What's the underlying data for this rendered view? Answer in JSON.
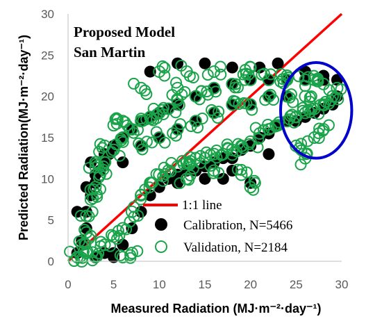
{
  "chart_data": {
    "type": "scatter",
    "title": "Proposed Model",
    "subtitle": "San Martin",
    "xlabel": "Measured Radiation (MJ·m⁻²·day⁻¹)",
    "ylabel": "Predicted Radiation(MJ·m⁻²·day⁻¹)",
    "xlim": [
      0,
      30
    ],
    "ylim": [
      0,
      30
    ],
    "xticks": [
      "0",
      "5",
      "10",
      "15",
      "20",
      "25",
      "30"
    ],
    "yticks": [
      "0",
      "5",
      "10",
      "15",
      "20",
      "25",
      "30"
    ],
    "grid": false,
    "legend_position": "bottom-right",
    "reference_line": {
      "name": "1:1 line",
      "color": "#ff0000",
      "x": [
        0,
        30
      ],
      "y": [
        0,
        30
      ]
    },
    "highlight_ellipse": {
      "color": "#0000cc",
      "center": [
        27.2,
        18.3
      ],
      "rx": 3.9,
      "ry": 5.8
    },
    "series": [
      {
        "name": "Calibration, N=5466",
        "marker": "filled-circle",
        "color": "#000000",
        "points": [
          [
            1,
            1
          ],
          [
            1.5,
            2.5
          ],
          [
            2,
            4
          ],
          [
            2,
            6
          ],
          [
            2.5,
            8
          ],
          [
            3,
            9.5
          ],
          [
            3.5,
            11
          ],
          [
            4,
            12
          ],
          [
            4.5,
            13
          ],
          [
            5,
            14
          ],
          [
            6,
            15
          ],
          [
            7,
            16
          ],
          [
            8,
            17
          ],
          [
            9,
            17.5
          ],
          [
            10,
            18
          ],
          [
            11,
            18.5
          ],
          [
            12,
            19
          ],
          [
            14,
            20
          ],
          [
            16,
            21
          ],
          [
            18,
            21.5
          ],
          [
            20,
            22
          ],
          [
            22,
            22
          ],
          [
            24,
            22
          ],
          [
            26,
            22
          ],
          [
            28,
            22
          ],
          [
            29.5,
            22
          ],
          [
            3,
            0.5
          ],
          [
            4,
            1
          ],
          [
            5,
            0.5
          ],
          [
            6,
            2
          ],
          [
            7,
            4
          ],
          [
            8,
            6
          ],
          [
            9,
            8
          ],
          [
            10,
            9
          ],
          [
            11,
            10
          ],
          [
            12,
            10.5
          ],
          [
            13,
            11
          ],
          [
            14,
            11
          ],
          [
            15,
            11.5
          ],
          [
            16,
            12
          ],
          [
            17,
            12.5
          ],
          [
            18,
            12.5
          ],
          [
            19,
            13.5
          ],
          [
            20,
            14
          ],
          [
            21,
            15
          ],
          [
            22,
            15.5
          ],
          [
            23,
            16.5
          ],
          [
            24,
            17
          ],
          [
            25,
            17
          ],
          [
            26,
            17.5
          ],
          [
            27,
            18
          ],
          [
            28,
            18.5
          ],
          [
            29,
            19
          ],
          [
            29.5,
            20
          ],
          [
            6,
            12
          ],
          [
            8,
            14
          ],
          [
            10,
            15
          ],
          [
            12,
            16
          ],
          [
            14,
            17
          ],
          [
            16,
            18
          ],
          [
            18,
            19
          ],
          [
            20,
            19
          ],
          [
            22,
            20
          ],
          [
            24,
            20
          ],
          [
            9,
            23
          ],
          [
            12,
            24
          ],
          [
            15,
            24
          ],
          [
            18,
            23.5
          ],
          [
            21,
            23.5
          ],
          [
            23,
            24
          ],
          [
            26,
            23
          ],
          [
            28,
            22.5
          ],
          [
            12,
            9.5
          ],
          [
            15,
            10
          ],
          [
            18,
            11
          ],
          [
            20,
            9.5
          ],
          [
            17,
            10
          ],
          [
            22,
            13
          ],
          [
            1,
            6
          ],
          [
            2,
            9
          ],
          [
            3,
            10.5
          ],
          [
            2.5,
            12
          ],
          [
            4,
            13
          ],
          [
            5,
            1
          ]
        ]
      },
      {
        "name": "Validation, N=2184",
        "marker": "open-circle",
        "color": "#1aa34a",
        "points": [
          [
            1,
            0.5
          ],
          [
            1.5,
            2
          ],
          [
            2,
            3.5
          ],
          [
            2,
            5.5
          ],
          [
            2.5,
            7.5
          ],
          [
            3,
            9
          ],
          [
            3.5,
            10.5
          ],
          [
            4,
            12
          ],
          [
            5,
            13.5
          ],
          [
            6,
            15
          ],
          [
            7,
            16
          ],
          [
            8,
            17
          ],
          [
            9,
            17.5
          ],
          [
            10,
            18
          ],
          [
            11,
            18.5
          ],
          [
            12,
            19.5
          ],
          [
            14,
            20
          ],
          [
            16,
            21
          ],
          [
            18,
            21.5
          ],
          [
            20,
            22
          ],
          [
            22,
            22
          ],
          [
            24,
            22
          ],
          [
            26,
            22
          ],
          [
            28,
            21.5
          ],
          [
            29.5,
            21
          ],
          [
            4,
            2
          ],
          [
            5,
            3
          ],
          [
            6,
            4
          ],
          [
            7,
            6
          ],
          [
            8,
            8
          ],
          [
            9,
            9.5
          ],
          [
            10,
            10.5
          ],
          [
            11,
            11
          ],
          [
            12,
            11.5
          ],
          [
            13,
            12
          ],
          [
            14,
            12.5
          ],
          [
            15,
            12.5
          ],
          [
            16,
            13
          ],
          [
            17,
            13
          ],
          [
            18,
            13.5
          ],
          [
            19,
            14
          ],
          [
            20,
            14.5
          ],
          [
            21,
            15.5
          ],
          [
            22,
            16
          ],
          [
            23,
            16.5
          ],
          [
            24,
            17
          ],
          [
            25,
            17.5
          ],
          [
            26,
            18
          ],
          [
            27,
            18.5
          ],
          [
            28,
            19
          ],
          [
            29,
            20
          ],
          [
            8,
            14
          ],
          [
            10,
            15
          ],
          [
            12,
            16
          ],
          [
            14,
            17
          ],
          [
            16,
            18
          ],
          [
            18,
            19
          ],
          [
            20,
            19
          ],
          [
            22,
            20
          ],
          [
            24,
            20
          ],
          [
            26,
            20
          ],
          [
            10,
            23
          ],
          [
            13,
            23
          ],
          [
            16,
            23
          ],
          [
            20,
            23.5
          ],
          [
            24,
            22.5
          ],
          [
            27,
            22
          ],
          [
            5,
            16.5
          ],
          [
            6,
            17
          ],
          [
            3,
            12
          ],
          [
            4,
            14
          ],
          [
            8,
            21
          ],
          [
            12,
            21
          ],
          [
            13,
            10
          ],
          [
            16,
            11
          ],
          [
            19,
            10.5
          ],
          [
            20,
            9
          ],
          [
            25,
            14
          ],
          [
            27,
            15
          ],
          [
            26,
            12.5
          ],
          [
            28,
            16
          ],
          [
            1.5,
            0
          ],
          [
            3,
            0.5
          ],
          [
            2,
            1
          ],
          [
            6,
            0.5
          ],
          [
            7,
            1
          ]
        ]
      }
    ]
  },
  "colors": {
    "calibration": "#000000",
    "validation": "#1aa34a",
    "reference_line": "#ff0000",
    "ellipse": "#0000cc",
    "axis": "#bfbfbf",
    "tick_text": "#595959"
  }
}
